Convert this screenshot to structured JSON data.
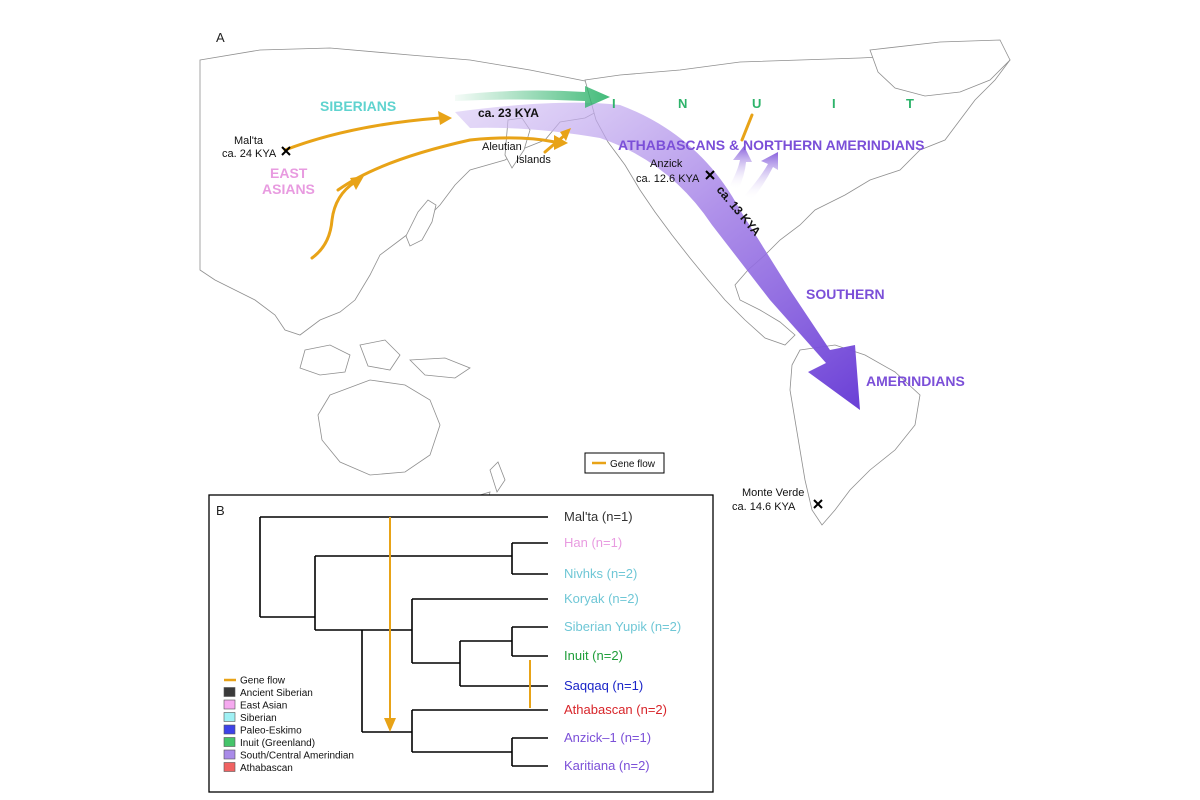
{
  "panel_a": {
    "letter": "A",
    "colors": {
      "gene_flow": "#e8a317",
      "siberian": "#5fd3cf",
      "east_asian": "#e89be0",
      "inuit": "#2db36a",
      "amerindian": "#7b4fd8",
      "land": "#ffffff",
      "border": "#9a9a9a"
    },
    "labels": {
      "siberians": "SIBERIANS",
      "east_asians_1": "EAST",
      "east_asians_2": "ASIANS",
      "ca23": "ca. 23 KYA",
      "malta_1": "Mal'ta",
      "malta_2": "ca. 24 KYA",
      "aleutian_1": "Aleutian",
      "aleutian_2": "Islands",
      "inuit_i1": "I",
      "inuit_n": "N",
      "inuit_u": "U",
      "inuit_i2": "I",
      "inuit_t": "T",
      "athabascans": "ATHABASCANS  &  NORTHERN AMERINDIANS",
      "anzick_1": "Anzick",
      "anzick_2": "ca. 12.6 KYA",
      "ca13": "ca. 13 KYA",
      "southern": "SOUTHERN",
      "amerindians": "AMERINDIANS",
      "monte_1": "Monte Verde",
      "monte_2": "ca. 14.6 KYA",
      "legend_gene_flow": "Gene flow"
    }
  },
  "panel_b": {
    "letter": "B",
    "taxa": [
      {
        "label": "Mal'ta (n=1)",
        "color": "#333333"
      },
      {
        "label": "Han (n=1)",
        "color": "#e89be0"
      },
      {
        "label": "Nivhks (n=2)",
        "color": "#6fc7d6"
      },
      {
        "label": "Koryak (n=2)",
        "color": "#6fc7d6"
      },
      {
        "label": "Siberian Yupik (n=2)",
        "color": "#6fc7d6"
      },
      {
        "label": "Inuit (n=2)",
        "color": "#1f9e3a"
      },
      {
        "label": "Saqqaq (n=1)",
        "color": "#1a24c8"
      },
      {
        "label": "Athabascan (n=2)",
        "color": "#d8252a"
      },
      {
        "label": "Anzick–1 (n=1)",
        "color": "#7b4fd8"
      },
      {
        "label": "Karitiana (n=2)",
        "color": "#7b4fd8"
      }
    ],
    "legend": [
      {
        "label": "Gene flow",
        "kind": "line",
        "color": "#e8a317"
      },
      {
        "label": "Ancient Siberian",
        "kind": "box",
        "color": "#3a3a3a"
      },
      {
        "label": "East Asian",
        "kind": "box",
        "color": "#f5a9ef"
      },
      {
        "label": "Siberian",
        "kind": "box",
        "color": "#9ff0f4"
      },
      {
        "label": "Paleo-Eskimo",
        "kind": "box",
        "color": "#3d42e8"
      },
      {
        "label": "Inuit (Greenland)",
        "kind": "box",
        "color": "#45c46a"
      },
      {
        "label": "South/Central Amerindian",
        "kind": "box",
        "color": "#a98be8"
      },
      {
        "label": "Athabascan",
        "kind": "box",
        "color": "#f06262"
      }
    ]
  }
}
